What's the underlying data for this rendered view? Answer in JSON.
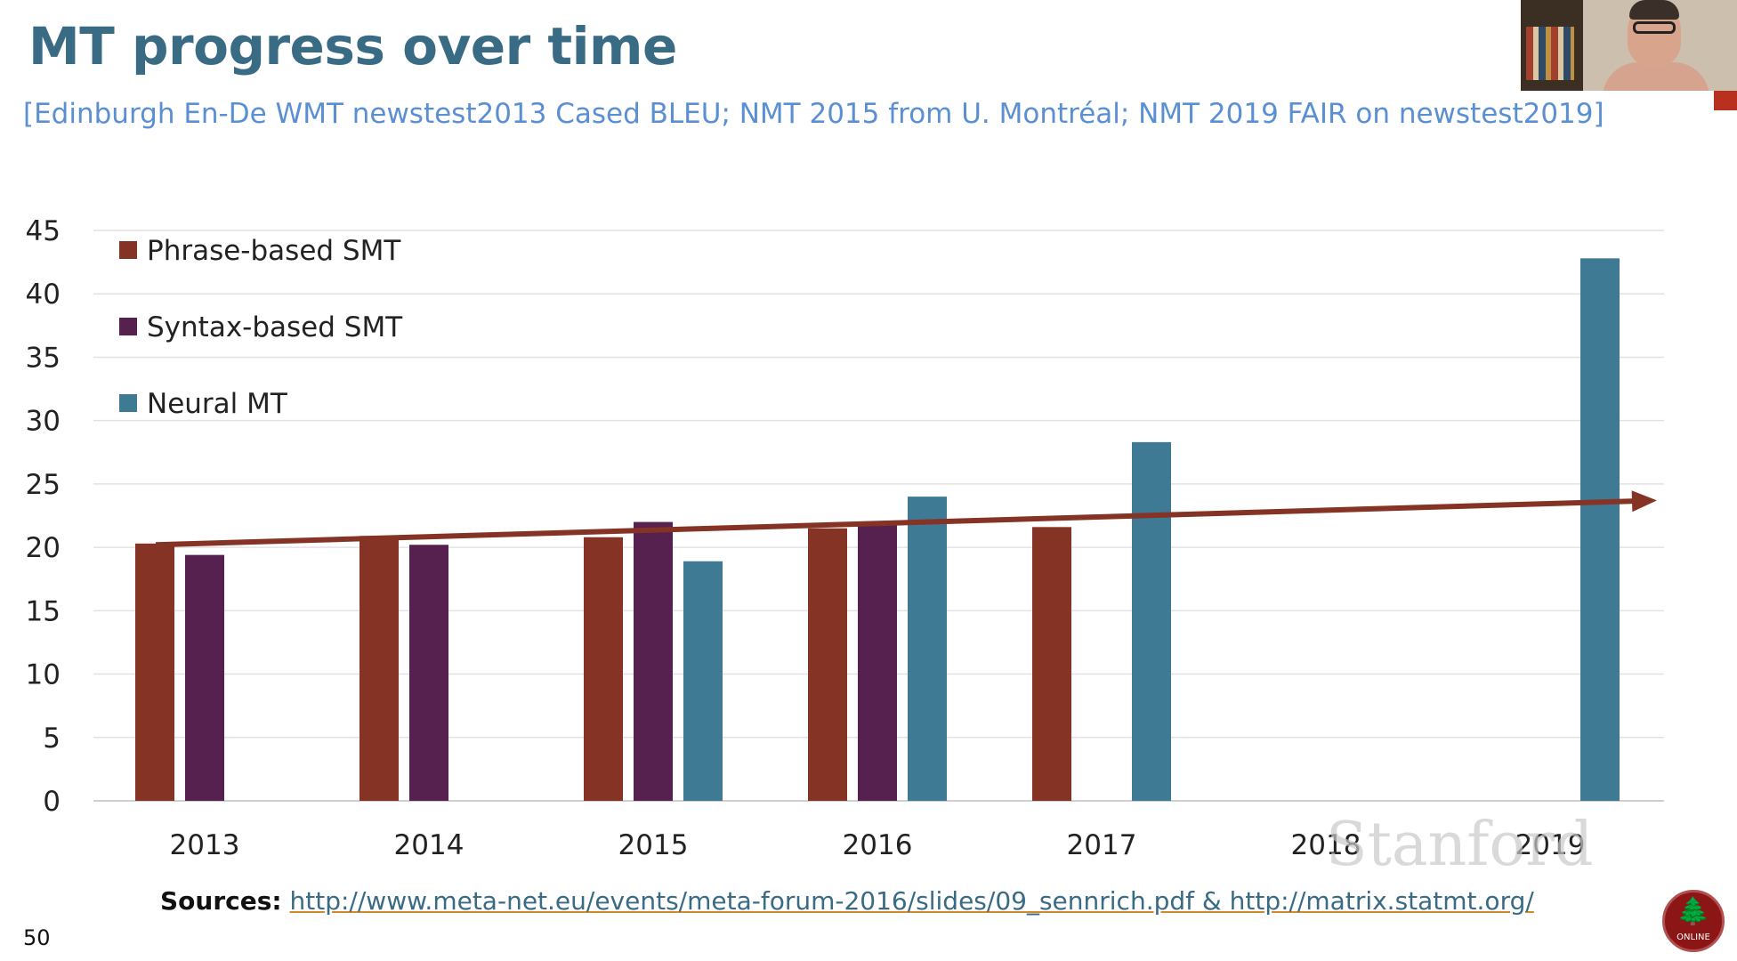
{
  "slide": {
    "title": "MT progress over time",
    "subtitle": "[Edinburgh En-De WMT newstest2013 Cased BLEU; NMT 2015 from U. Montréal; NMT 2019 FAIR on newstest2019]",
    "sources_label": "Sources:",
    "sources_links": "http://www.meta-net.eu/events/meta-forum-2016/slides/09_sennrich.pdf & http://matrix.statmt.org/",
    "slide_number": "50",
    "watermark": "Stanford",
    "seal_text": "ONLINE"
  },
  "webcam": {
    "icon": "presenter-video-icon"
  },
  "colors": {
    "title": "#3a6b84",
    "subtitle": "#5b8fd3",
    "phrase": "#843325",
    "syntax": "#56204f",
    "neural": "#3f7a94",
    "trend": "#843325",
    "grid": "#e2e2e2"
  },
  "chart_data": {
    "type": "bar",
    "categories": [
      "2013",
      "2014",
      "2015",
      "2016",
      "2017",
      "2018",
      "2019"
    ],
    "series": [
      {
        "name": "Phrase-based SMT",
        "values": [
          20.3,
          20.9,
          20.8,
          21.5,
          21.6,
          null,
          null
        ]
      },
      {
        "name": "Syntax-based SMT",
        "values": [
          19.4,
          20.2,
          22.0,
          22.0,
          null,
          null,
          null
        ]
      },
      {
        "name": "Neural MT",
        "values": [
          null,
          null,
          18.9,
          24.0,
          28.3,
          null,
          42.8
        ]
      }
    ],
    "yticks": [
      0,
      5,
      10,
      15,
      20,
      25,
      30,
      35,
      40,
      45
    ],
    "ylim": [
      0,
      45
    ],
    "grid": true,
    "legend": "top-left",
    "trend_arrow": {
      "from": [
        "2013",
        20.2
      ],
      "to": [
        "2019",
        23.7
      ]
    }
  }
}
